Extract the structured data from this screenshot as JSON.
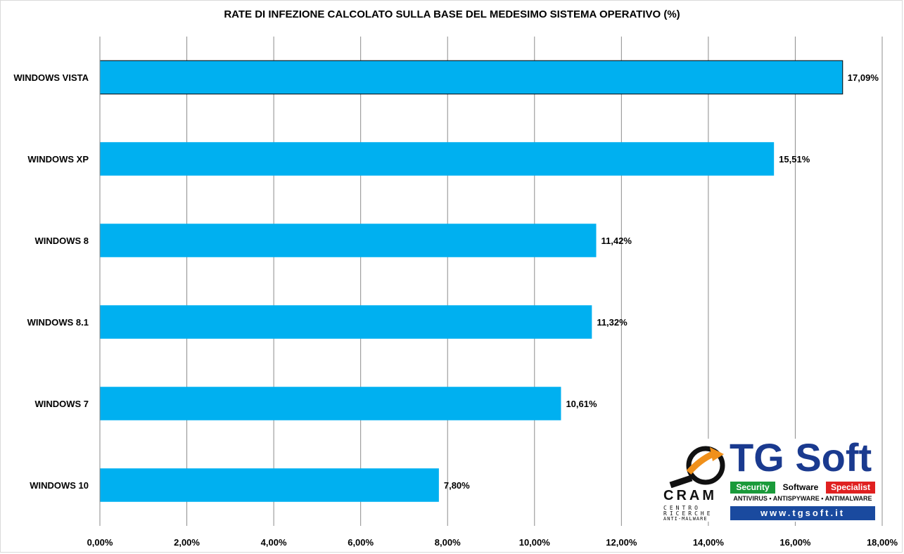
{
  "chart_data": {
    "type": "bar",
    "orientation": "horizontal",
    "title": "RATE DI INFEZIONE CALCOLATO SULLA BASE DEL MEDESIMO SISTEMA OPERATIVO (%)",
    "categories": [
      "WINDOWS VISTA",
      "WINDOWS XP",
      "WINDOWS 8",
      "WINDOWS 8.1",
      "WINDOWS 7",
      "WINDOWS 10"
    ],
    "values": [
      17.09,
      15.51,
      11.42,
      11.32,
      10.61,
      7.8
    ],
    "data_labels": [
      "17,09%",
      "15,51%",
      "11,42%",
      "11,32%",
      "10,61%",
      "7,80%"
    ],
    "xlim": [
      0,
      18
    ],
    "x_ticks": [
      0,
      2,
      4,
      6,
      8,
      10,
      12,
      14,
      16,
      18
    ],
    "x_tick_labels": [
      "0,00%",
      "2,00%",
      "4,00%",
      "6,00%",
      "8,00%",
      "10,00%",
      "12,00%",
      "14,00%",
      "16,00%",
      "18,00%"
    ],
    "xlabel": "",
    "ylabel": "",
    "grid": true,
    "legend": "none",
    "bar_color": "#00b0f0",
    "highlight_index": 0
  },
  "logo": {
    "cram_text": "CRAM",
    "cram_line1": "CENTRO",
    "cram_line2": "RICERCHE",
    "cram_line3": "ANTI-MALWARE",
    "brand": "TG Soft",
    "bar_security": "Security",
    "bar_software": "Software",
    "bar_specialist": "Specialist",
    "tagline": "ANTIVIRUS • ANTISPYWARE • ANTIMALWARE",
    "url": "www.tgsoft.it",
    "brand_color": "#1a3a8f",
    "accent_orange": "#f0901a"
  }
}
